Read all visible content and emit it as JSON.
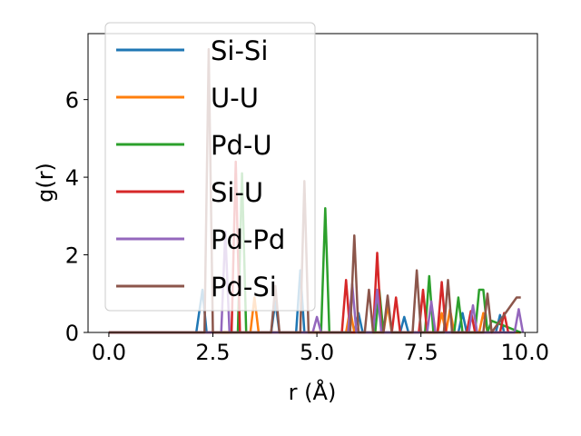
{
  "chart_data": {
    "type": "line",
    "xlabel": "r (Å)",
    "ylabel": "g(r)",
    "xlim": [
      -0.5,
      10.3
    ],
    "ylim": [
      0,
      7.7
    ],
    "xticks": [
      0.0,
      2.5,
      5.0,
      7.5,
      10.0
    ],
    "xtick_labels": [
      "0.0",
      "2.5",
      "5.0",
      "7.5",
      "10.0"
    ],
    "yticks": [
      0,
      2,
      4,
      6
    ],
    "ytick_labels": [
      "0",
      "2",
      "4",
      "6"
    ],
    "grid": false,
    "legend_position": "upper-left",
    "series": [
      {
        "name": "Si-Si",
        "color": "#1f77b4",
        "x": [
          0,
          2.1,
          2.25,
          2.35,
          2.45,
          2.6,
          3.9,
          4.0,
          4.1,
          4.5,
          4.6,
          4.7,
          5.9,
          6.0,
          6.1,
          7.0,
          7.1,
          7.2,
          8.4,
          8.5,
          8.6,
          9.3,
          9.4,
          9.5,
          9.9
        ],
        "y": [
          0,
          0,
          1.1,
          0.0,
          0,
          0,
          0,
          0.8,
          0,
          0,
          1.6,
          0,
          0,
          0.5,
          0,
          0,
          0.4,
          0,
          0,
          0.5,
          0,
          0,
          0.45,
          0,
          0
        ]
      },
      {
        "name": "U-U",
        "color": "#ff7f0e",
        "x": [
          0,
          3.4,
          3.5,
          3.6,
          5.7,
          5.8,
          5.9,
          6.6,
          6.7,
          6.8,
          7.9,
          8.0,
          8.1,
          8.2,
          8.3,
          8.9,
          9.0,
          9.1,
          9.9
        ],
        "y": [
          0,
          0,
          0.9,
          0,
          0,
          0.6,
          0,
          0,
          0.7,
          0,
          0,
          0.5,
          0,
          0.6,
          0,
          0,
          0.5,
          0,
          0
        ]
      },
      {
        "name": "Pd-U",
        "color": "#2ca02c",
        "x": [
          0,
          3.1,
          3.2,
          3.3,
          5.1,
          5.2,
          5.3,
          6.4,
          6.5,
          6.6,
          7.6,
          7.7,
          7.8,
          8.3,
          8.4,
          8.5,
          8.8,
          8.9,
          9.0,
          9.1,
          9.2,
          9.9
        ],
        "y": [
          0,
          0,
          4.1,
          0,
          0,
          3.2,
          0,
          0,
          1.1,
          0,
          0,
          1.45,
          0,
          0,
          0.9,
          0,
          0,
          1.1,
          1.1,
          0,
          0.3,
          0
        ]
      },
      {
        "name": "Si-U",
        "color": "#d62728",
        "x": [
          0,
          2.95,
          3.05,
          3.15,
          5.6,
          5.7,
          5.8,
          6.35,
          6.45,
          6.55,
          6.8,
          6.9,
          7.0,
          7.45,
          7.55,
          7.65,
          7.9,
          8.0,
          8.1,
          8.6,
          8.7,
          8.8,
          9.4,
          9.5,
          9.6
        ],
        "y": [
          0,
          0,
          4.4,
          0,
          0,
          1.35,
          0,
          0,
          2.05,
          0,
          0,
          0.9,
          0,
          0,
          1.1,
          0,
          0,
          1.3,
          0,
          0,
          0.55,
          0,
          0,
          0.5,
          0
        ]
      },
      {
        "name": "Pd-Pd",
        "color": "#9467bd",
        "x": [
          0,
          2.7,
          2.8,
          2.9,
          4.9,
          5.0,
          5.1,
          5.75,
          5.85,
          5.95,
          6.35,
          6.45,
          6.55,
          7.65,
          7.75,
          7.85,
          8.65,
          8.75,
          8.85,
          9.75,
          9.85,
          9.95
        ],
        "y": [
          0,
          0,
          2.6,
          0,
          0,
          0.4,
          0,
          0,
          1.25,
          0,
          0,
          1.1,
          0,
          0,
          0.8,
          0,
          0,
          0.7,
          0,
          0,
          0.6,
          0
        ]
      },
      {
        "name": "Pd-Si",
        "color": "#8c564b",
        "x": [
          0,
          2.3,
          2.4,
          2.5,
          3.9,
          4.0,
          4.1,
          4.6,
          4.7,
          4.8,
          5.8,
          5.9,
          6.0,
          6.15,
          6.25,
          6.35,
          6.6,
          6.7,
          6.8,
          7.3,
          7.4,
          7.5,
          8.05,
          8.15,
          8.25,
          9.0,
          9.1,
          9.2,
          9.8,
          9.9
        ],
        "y": [
          0,
          0,
          7.3,
          0,
          0,
          1.2,
          0,
          0,
          3.9,
          0,
          0,
          2.5,
          0,
          0,
          1.1,
          0,
          0,
          0.95,
          0,
          0,
          1.6,
          0,
          0,
          1.35,
          0,
          0,
          1.0,
          0,
          0.9,
          0.9
        ]
      }
    ]
  }
}
